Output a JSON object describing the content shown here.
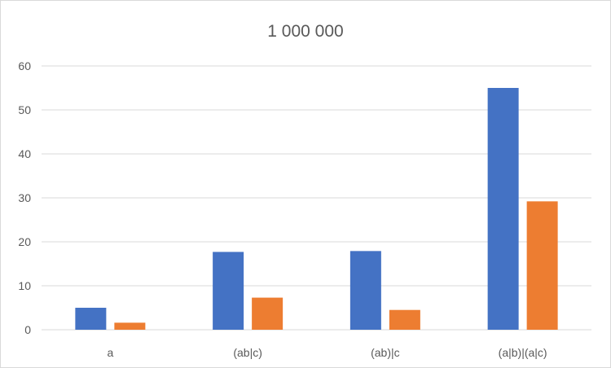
{
  "chart_data": {
    "type": "bar",
    "title": "1 000 000",
    "categories": [
      "a",
      "(ab|c)",
      "(ab)|c",
      "(a|b)|(a|c)"
    ],
    "series": [
      {
        "color": "#4472c4",
        "values": [
          5.0,
          17.7,
          17.9,
          55.0
        ]
      },
      {
        "color": "#ed7d31",
        "values": [
          1.6,
          7.3,
          4.5,
          29.2
        ]
      }
    ],
    "ylim": [
      0,
      60
    ],
    "yticks": [
      0,
      10,
      20,
      30,
      40,
      50,
      60
    ],
    "grid": true,
    "xlabel": "",
    "ylabel": ""
  }
}
